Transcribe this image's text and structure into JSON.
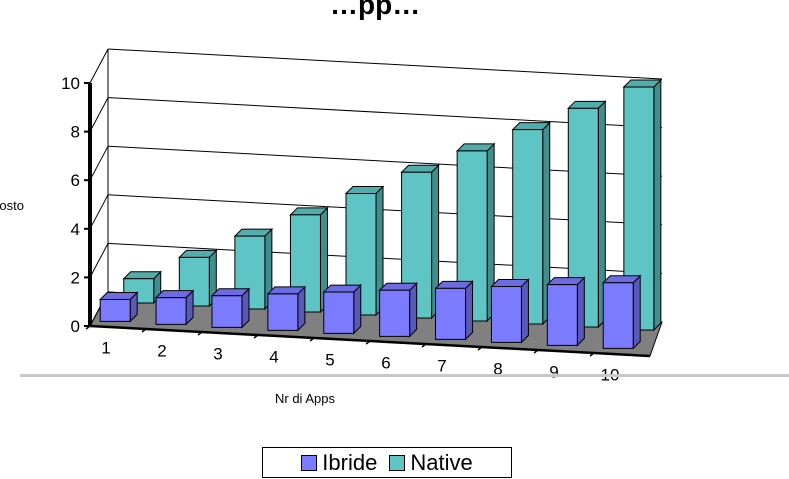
{
  "chart_data": {
    "type": "bar",
    "title": "…pp…",
    "xlabel": "Nr di Apps",
    "ylabel": "Costo",
    "categories": [
      "1",
      "2",
      "3",
      "4",
      "5",
      "6",
      "7",
      "8",
      "9",
      "10"
    ],
    "series": [
      {
        "name": "Ibride",
        "values": [
          0.9,
          1.1,
          1.3,
          1.5,
          1.7,
          1.9,
          2.1,
          2.3,
          2.5,
          2.7
        ],
        "color": "#7b7bff"
      },
      {
        "name": "Native",
        "values": [
          1,
          2,
          3,
          4,
          5,
          6,
          7,
          8,
          9,
          10
        ],
        "color": "#5ec4c4"
      }
    ],
    "ylim": [
      0,
      10
    ],
    "yticks": [
      "0",
      "2",
      "4",
      "6",
      "8",
      "10"
    ],
    "grid": true,
    "legend_position": "bottom",
    "floor_color": "#808080"
  }
}
